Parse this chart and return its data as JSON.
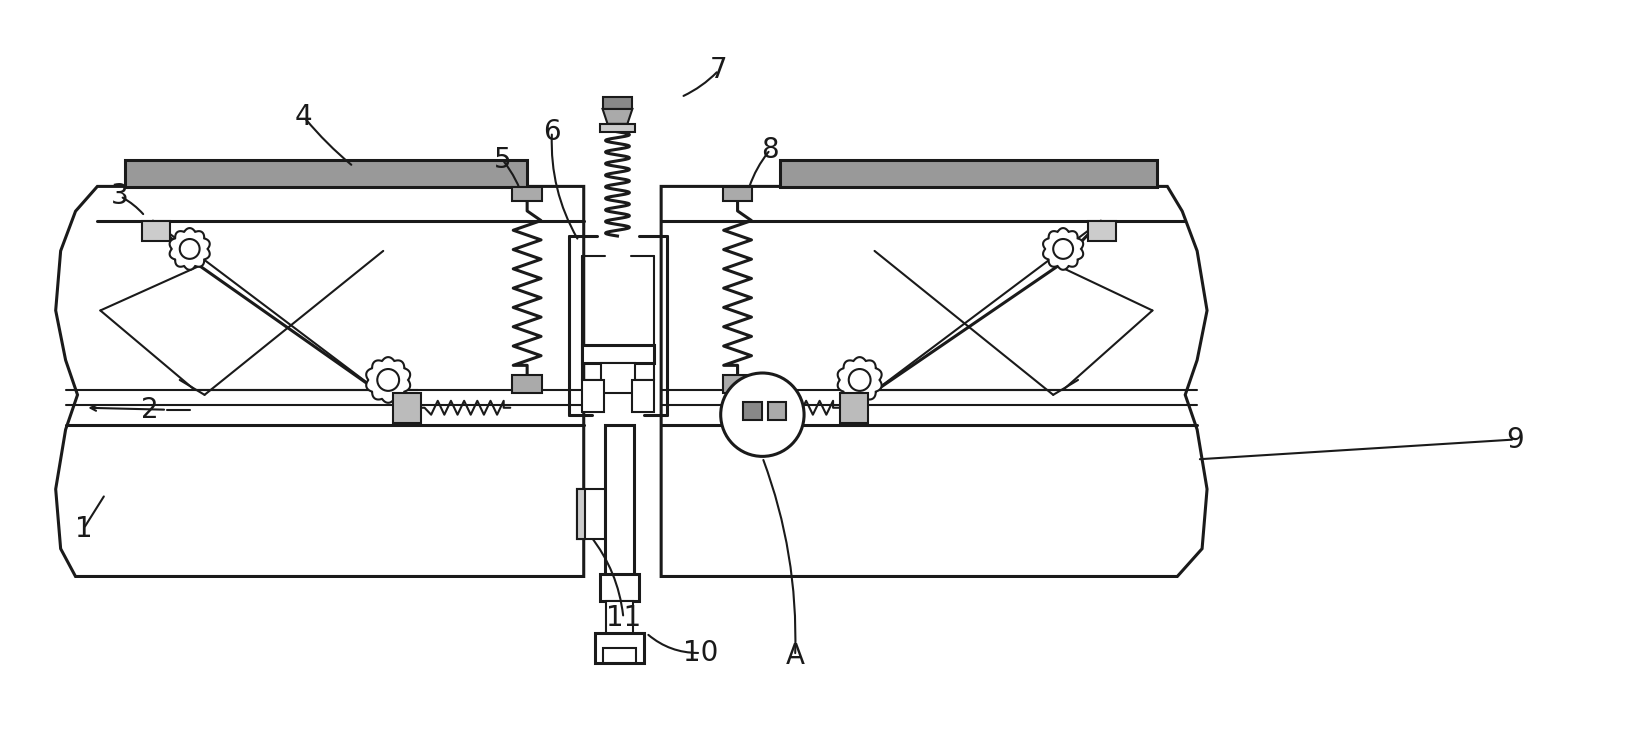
{
  "bg_color": "#ffffff",
  "line_color": "#1a1a1a",
  "lw": 1.5,
  "lw2": 2.2,
  "fig_width": 16.28,
  "fig_height": 7.47,
  "dpi": 100,
  "label_fontsize": 20
}
